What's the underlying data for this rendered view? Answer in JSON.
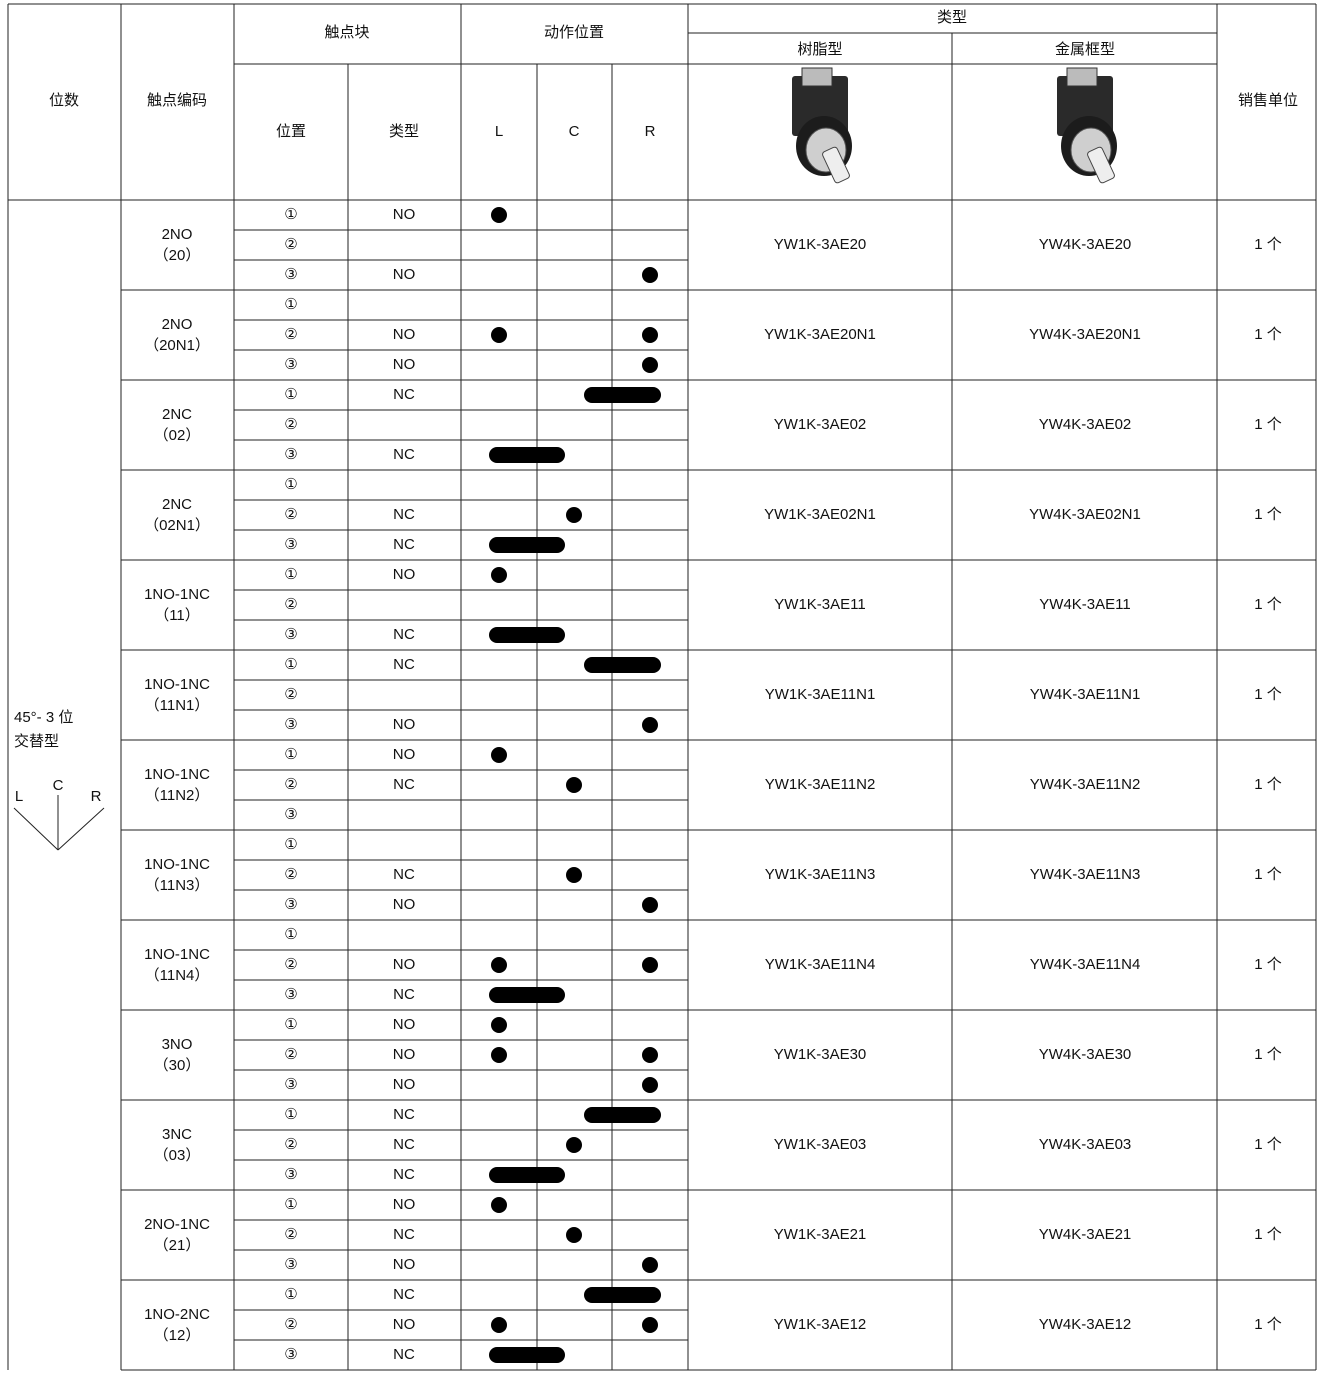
{
  "header": {
    "positions": "位数",
    "code": "触点编码",
    "contact_block": "触点块",
    "position": "位置",
    "type": "类型",
    "action_position": "动作位置",
    "L": "L",
    "C": "C",
    "R": "R",
    "model_type": "类型",
    "resin": "树脂型",
    "metal": "金属框型",
    "unit": "销售单位"
  },
  "left_label": {
    "line1": "45°- 3 位",
    "line2": "交替型",
    "L": "L",
    "C": "C",
    "R": "R"
  },
  "groups": [
    {
      "code": "2NO",
      "code_detail": "（20）",
      "rows": [
        {
          "pos": "①",
          "type": "NO",
          "on": [
            "L"
          ]
        },
        {
          "pos": "②",
          "type": "",
          "on": []
        },
        {
          "pos": "③",
          "type": "NO",
          "on": [
            "R"
          ]
        }
      ],
      "resin": "YW1K-3AE20",
      "metal": "YW4K-3AE20",
      "unit": "1 个"
    },
    {
      "code": "2NO",
      "code_detail": "（20N1）",
      "rows": [
        {
          "pos": "①",
          "type": "",
          "on": []
        },
        {
          "pos": "②",
          "type": "NO",
          "on": [
            "L",
            "R"
          ]
        },
        {
          "pos": "③",
          "type": "NO",
          "on": [
            "R"
          ]
        }
      ],
      "resin": "YW1K-3AE20N1",
      "metal": "YW4K-3AE20N1",
      "unit": "1 个"
    },
    {
      "code": "2NC",
      "code_detail": "（02）",
      "rows": [
        {
          "pos": "①",
          "type": "NC",
          "on": [
            "C",
            "R"
          ]
        },
        {
          "pos": "②",
          "type": "",
          "on": []
        },
        {
          "pos": "③",
          "type": "NC",
          "on": [
            "L",
            "C"
          ]
        }
      ],
      "resin": "YW1K-3AE02",
      "metal": "YW4K-3AE02",
      "unit": "1 个"
    },
    {
      "code": "2NC",
      "code_detail": "（02N1）",
      "rows": [
        {
          "pos": "①",
          "type": "",
          "on": []
        },
        {
          "pos": "②",
          "type": "NC",
          "on": [
            "C"
          ]
        },
        {
          "pos": "③",
          "type": "NC",
          "on": [
            "L",
            "C"
          ]
        }
      ],
      "resin": "YW1K-3AE02N1",
      "metal": "YW4K-3AE02N1",
      "unit": "1 个"
    },
    {
      "code": "1NO-1NC",
      "code_detail": "（11）",
      "rows": [
        {
          "pos": "①",
          "type": "NO",
          "on": [
            "L"
          ]
        },
        {
          "pos": "②",
          "type": "",
          "on": []
        },
        {
          "pos": "③",
          "type": "NC",
          "on": [
            "L",
            "C"
          ]
        }
      ],
      "resin": "YW1K-3AE11",
      "metal": "YW4K-3AE11",
      "unit": "1 个"
    },
    {
      "code": "1NO-1NC",
      "code_detail": "（11N1）",
      "rows": [
        {
          "pos": "①",
          "type": "NC",
          "on": [
            "C",
            "R"
          ]
        },
        {
          "pos": "②",
          "type": "",
          "on": []
        },
        {
          "pos": "③",
          "type": "NO",
          "on": [
            "R"
          ]
        }
      ],
      "resin": "YW1K-3AE11N1",
      "metal": "YW4K-3AE11N1",
      "unit": "1 个"
    },
    {
      "code": "1NO-1NC",
      "code_detail": "（11N2）",
      "rows": [
        {
          "pos": "①",
          "type": "NO",
          "on": [
            "L"
          ]
        },
        {
          "pos": "②",
          "type": "NC",
          "on": [
            "C"
          ]
        },
        {
          "pos": "③",
          "type": "",
          "on": []
        }
      ],
      "resin": "YW1K-3AE11N2",
      "metal": "YW4K-3AE11N2",
      "unit": "1 个"
    },
    {
      "code": "1NO-1NC",
      "code_detail": "（11N3）",
      "rows": [
        {
          "pos": "①",
          "type": "",
          "on": []
        },
        {
          "pos": "②",
          "type": "NC",
          "on": [
            "C"
          ]
        },
        {
          "pos": "③",
          "type": "NO",
          "on": [
            "R"
          ]
        }
      ],
      "resin": "YW1K-3AE11N3",
      "metal": "YW4K-3AE11N3",
      "unit": "1 个"
    },
    {
      "code": "1NO-1NC",
      "code_detail": "（11N4）",
      "rows": [
        {
          "pos": "①",
          "type": "",
          "on": []
        },
        {
          "pos": "②",
          "type": "NO",
          "on": [
            "L",
            "R"
          ]
        },
        {
          "pos": "③",
          "type": "NC",
          "on": [
            "L",
            "C"
          ]
        }
      ],
      "resin": "YW1K-3AE11N4",
      "metal": "YW4K-3AE11N4",
      "unit": "1 个"
    },
    {
      "code": "3NO",
      "code_detail": "（30）",
      "rows": [
        {
          "pos": "①",
          "type": "NO",
          "on": [
            "L"
          ]
        },
        {
          "pos": "②",
          "type": "NO",
          "on": [
            "L",
            "R"
          ]
        },
        {
          "pos": "③",
          "type": "NO",
          "on": [
            "R"
          ]
        }
      ],
      "resin": "YW1K-3AE30",
      "metal": "YW4K-3AE30",
      "unit": "1 个"
    },
    {
      "code": "3NC",
      "code_detail": "（03）",
      "rows": [
        {
          "pos": "①",
          "type": "NC",
          "on": [
            "C",
            "R"
          ]
        },
        {
          "pos": "②",
          "type": "NC",
          "on": [
            "C"
          ]
        },
        {
          "pos": "③",
          "type": "NC",
          "on": [
            "L",
            "C"
          ]
        }
      ],
      "resin": "YW1K-3AE03",
      "metal": "YW4K-3AE03",
      "unit": "1 个"
    },
    {
      "code": "2NO-1NC",
      "code_detail": "（21）",
      "rows": [
        {
          "pos": "①",
          "type": "NO",
          "on": [
            "L"
          ]
        },
        {
          "pos": "②",
          "type": "NC",
          "on": [
            "C"
          ]
        },
        {
          "pos": "③",
          "type": "NO",
          "on": [
            "R"
          ]
        }
      ],
      "resin": "YW1K-3AE21",
      "metal": "YW4K-3AE21",
      "unit": "1 个"
    },
    {
      "code": "1NO-2NC",
      "code_detail": "（12）",
      "rows": [
        {
          "pos": "①",
          "type": "NC",
          "on": [
            "C",
            "R"
          ]
        },
        {
          "pos": "②",
          "type": "NO",
          "on": [
            "L",
            "R"
          ]
        },
        {
          "pos": "③",
          "type": "NC",
          "on": [
            "L",
            "C"
          ]
        }
      ],
      "resin": "YW1K-3AE12",
      "metal": "YW4K-3AE12",
      "unit": "1 个"
    }
  ]
}
